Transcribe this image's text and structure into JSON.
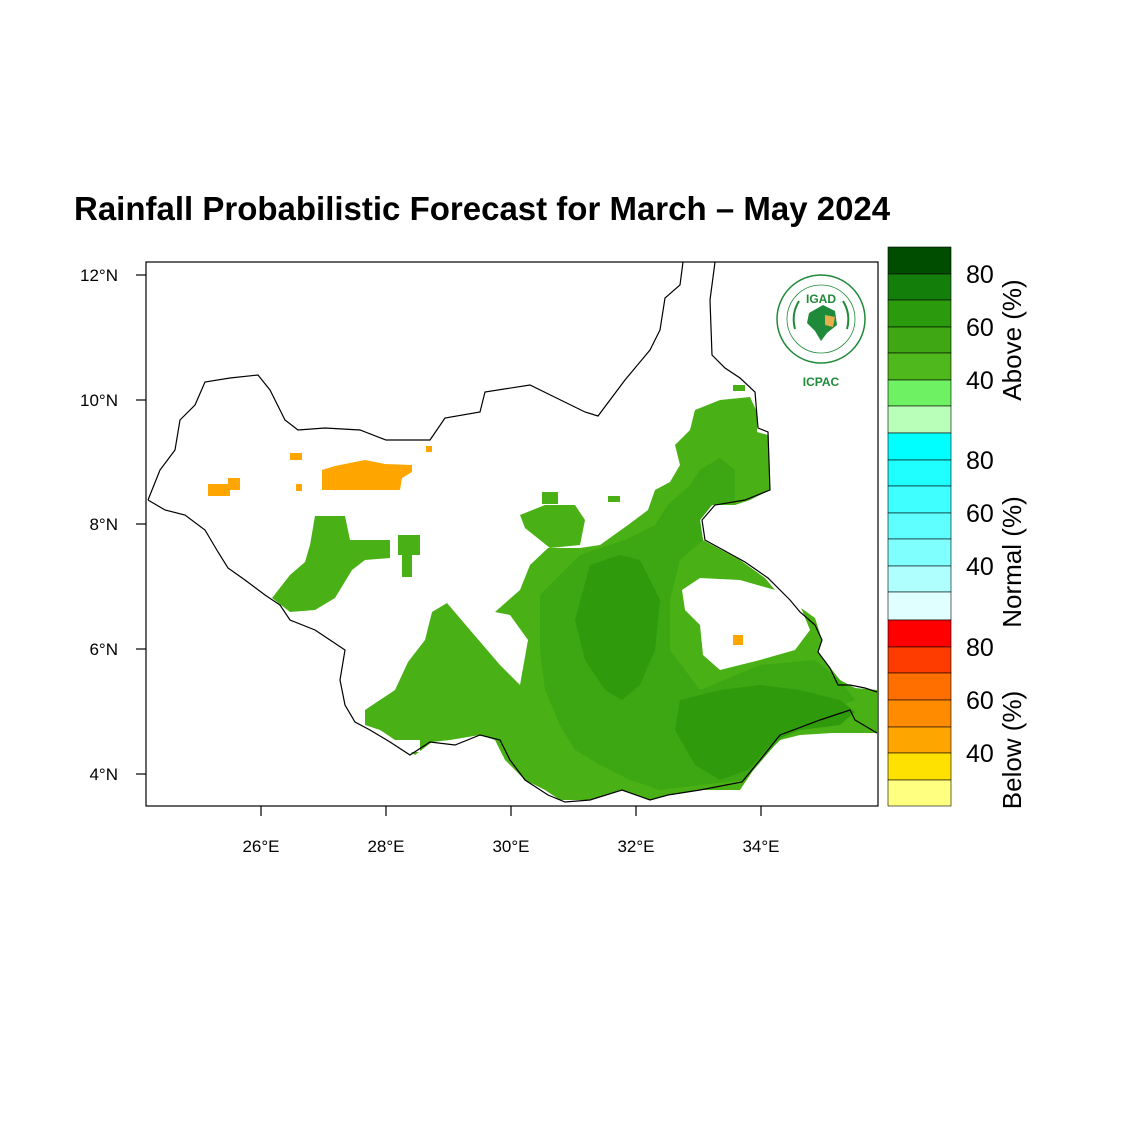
{
  "title": "Rainfall Probabilistic Forecast for March – May 2024",
  "map": {
    "lon_range": [
      24.2,
      35.9
    ],
    "lat_range": [
      3.5,
      12.2
    ],
    "lon_ticks": [
      "26°E",
      "28°E",
      "30°E",
      "32°E",
      "34°E"
    ],
    "lat_ticks": [
      "12°N",
      "10°N",
      "8°N",
      "6°N",
      "4°N"
    ],
    "colors": {
      "above_40_50": "#49b015",
      "above_50_60": "#3da713",
      "above_60_70": "#2e9a0c",
      "below_40_50": "#ffa500",
      "below_50_60": "#ff9f00",
      "border": "#000000"
    }
  },
  "legend": {
    "above": {
      "title": "Above (%)",
      "labels": [
        "80",
        "60",
        "40"
      ],
      "colors": [
        "#004d00",
        "#137f0a",
        "#2b9a0c",
        "#3ea713",
        "#4fb81c",
        "#6ef163",
        "#b9ffb9"
      ]
    },
    "normal": {
      "title": "Normal (%)",
      "labels": [
        "80",
        "60",
        "40"
      ],
      "colors": [
        "#00ffff",
        "#20ffff",
        "#40ffff",
        "#60ffff",
        "#80ffff",
        "#b0ffff",
        "#e0ffff"
      ]
    },
    "below": {
      "title": "Below (%)",
      "labels": [
        "80",
        "60",
        "40"
      ],
      "colors": [
        "#ff0000",
        "#ff3c00",
        "#ff6f00",
        "#ff8c00",
        "#ffa500",
        "#ffe100",
        "#ffff80"
      ]
    }
  },
  "logo": {
    "top_text": "IGAD",
    "bottom_text": "ICPAC"
  }
}
